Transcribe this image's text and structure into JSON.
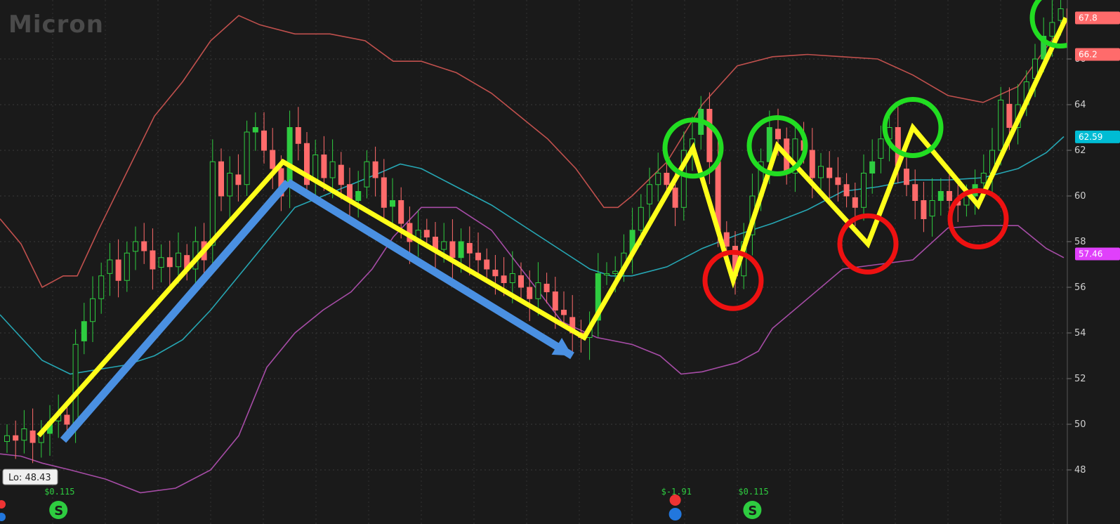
{
  "brand": {
    "logo_text": "Micron"
  },
  "lo_label": "Lo: 48.43",
  "price_tags": [
    {
      "value": "67.8",
      "price": 67.8,
      "bg": "#ff6b6b",
      "fg": "#ffffff"
    },
    {
      "value": "66.2",
      "price": 66.2,
      "bg": "#ff6b6b",
      "fg": "#ffffff"
    },
    {
      "value": "62.59",
      "price": 62.59,
      "bg": "#00bcd4",
      "fg": "#ffffff"
    },
    {
      "value": "57.46",
      "price": 57.46,
      "bg": "#e040fb",
      "fg": "#ffffff"
    }
  ],
  "events": [
    {
      "label": "$0.115",
      "type": "dividend",
      "xi": 6
    },
    {
      "label": "$-1.91",
      "type": "earnings",
      "xi": 78
    },
    {
      "label": "$0.115",
      "type": "dividend",
      "xi": 87
    }
  ],
  "chart_data": {
    "type": "candlestick",
    "title": "",
    "y_ticks": [
      48,
      50,
      52,
      54,
      56,
      58,
      60,
      62,
      64,
      66
    ],
    "ylim": [
      46,
      68.5
    ],
    "colors": {
      "up": "#2ecc40",
      "down": "#ff6b6b",
      "upper_band": "#c0504d",
      "middle_band": "#26a6b3",
      "lower_band": "#a64ca6",
      "zigzag": "#ffff1a",
      "arrow": "#4a90e2",
      "peak_circle": "#22dd22",
      "trough_circle": "#ee1111"
    },
    "candles_count": 126,
    "closes": [
      49.5,
      49.3,
      49.8,
      49.2,
      49.6,
      50.1,
      50.4,
      50.0,
      53.5,
      54.5,
      55.5,
      56.5,
      57.2,
      56.3,
      57.5,
      58.0,
      57.6,
      56.8,
      57.3,
      56.9,
      57.5,
      56.8,
      58.0,
      57.2,
      61.5,
      60.0,
      61.0,
      60.5,
      62.8,
      63.0,
      62.0,
      61.2,
      60.0,
      63.0,
      62.3,
      60.5,
      61.8,
      60.8,
      61.5,
      60.5,
      59.8,
      60.2,
      61.5,
      60.8,
      59.5,
      59.8,
      58.8,
      58.0,
      58.5,
      58.2,
      57.6,
      58.0,
      57.3,
      58.0,
      57.5,
      57.2,
      56.8,
      56.5,
      56.2,
      56.6,
      56.0,
      55.5,
      56.2,
      55.8,
      55.0,
      54.8,
      54.0,
      53.8,
      54.2,
      56.6,
      56.6,
      56.7,
      57.5,
      58.5,
      59.5,
      60.5,
      61.0,
      60.5,
      59.5,
      62.0,
      62.5,
      63.8,
      61.5,
      58.5,
      57.8,
      56.5,
      58.0,
      60.0,
      61.5,
      63.0,
      62.5,
      61.0,
      62.5,
      62.0,
      60.8,
      61.3,
      60.8,
      60.5,
      60.0,
      59.5,
      61.0,
      61.5,
      62.5,
      63.0,
      61.3,
      60.5,
      59.8,
      59.0,
      59.8,
      60.2,
      59.8,
      59.6,
      60.0,
      60.5,
      61.0,
      62.0,
      64.2,
      63.0,
      64.0,
      65.0,
      66.0,
      67.0,
      67.6,
      68.2,
      66.5,
      65.0
    ],
    "bollinger_upper": [
      [
        0,
        59.0
      ],
      [
        30,
        57.9
      ],
      [
        60,
        56.0
      ],
      [
        90,
        56.5
      ],
      [
        110,
        56.5
      ],
      [
        140,
        58.5
      ],
      [
        180,
        61.0
      ],
      [
        220,
        63.5
      ],
      [
        260,
        65.0
      ],
      [
        300,
        66.8
      ],
      [
        340,
        67.9
      ],
      [
        370,
        67.5
      ],
      [
        420,
        67.1
      ],
      [
        470,
        67.1
      ],
      [
        520,
        66.8
      ],
      [
        560,
        65.9
      ],
      [
        600,
        65.9
      ],
      [
        650,
        65.4
      ],
      [
        700,
        64.5
      ],
      [
        740,
        63.5
      ],
      [
        780,
        62.5
      ],
      [
        820,
        61.2
      ],
      [
        860,
        59.5
      ],
      [
        880,
        59.5
      ],
      [
        900,
        60.0
      ],
      [
        950,
        61.5
      ],
      [
        1000,
        64.0
      ],
      [
        1050,
        65.7
      ],
      [
        1100,
        66.1
      ],
      [
        1150,
        66.2
      ],
      [
        1200,
        66.1
      ],
      [
        1250,
        66.0
      ],
      [
        1300,
        65.3
      ],
      [
        1350,
        64.4
      ],
      [
        1400,
        64.1
      ],
      [
        1450,
        64.8
      ],
      [
        1490,
        66.5
      ],
      [
        1515,
        67.5
      ]
    ],
    "bollinger_middle": [
      [
        0,
        54.8
      ],
      [
        30,
        53.8
      ],
      [
        60,
        52.8
      ],
      [
        100,
        52.2
      ],
      [
        140,
        52.4
      ],
      [
        180,
        52.6
      ],
      [
        220,
        53.0
      ],
      [
        260,
        53.7
      ],
      [
        300,
        55.0
      ],
      [
        340,
        56.5
      ],
      [
        380,
        58.0
      ],
      [
        420,
        59.5
      ],
      [
        460,
        60.0
      ],
      [
        500,
        60.5
      ],
      [
        540,
        61.0
      ],
      [
        570,
        61.4
      ],
      [
        600,
        61.2
      ],
      [
        650,
        60.4
      ],
      [
        700,
        59.6
      ],
      [
        750,
        58.6
      ],
      [
        800,
        57.6
      ],
      [
        840,
        56.8
      ],
      [
        870,
        56.5
      ],
      [
        900,
        56.5
      ],
      [
        950,
        56.9
      ],
      [
        1000,
        57.7
      ],
      [
        1050,
        58.3
      ],
      [
        1100,
        58.8
      ],
      [
        1150,
        59.4
      ],
      [
        1200,
        60.2
      ],
      [
        1250,
        60.4
      ],
      [
        1300,
        60.7
      ],
      [
        1350,
        60.7
      ],
      [
        1400,
        60.8
      ],
      [
        1450,
        61.2
      ],
      [
        1490,
        61.9
      ],
      [
        1515,
        62.6
      ]
    ],
    "bollinger_lower": [
      [
        0,
        48.7
      ],
      [
        30,
        48.6
      ],
      [
        60,
        48.3
      ],
      [
        100,
        48.0
      ],
      [
        150,
        47.6
      ],
      [
        200,
        47.0
      ],
      [
        250,
        47.2
      ],
      [
        300,
        48.0
      ],
      [
        340,
        49.5
      ],
      [
        380,
        52.5
      ],
      [
        420,
        54.0
      ],
      [
        460,
        55.0
      ],
      [
        500,
        55.8
      ],
      [
        530,
        56.8
      ],
      [
        560,
        58.2
      ],
      [
        600,
        59.5
      ],
      [
        650,
        59.5
      ],
      [
        700,
        58.5
      ],
      [
        750,
        56.5
      ],
      [
        800,
        54.5
      ],
      [
        850,
        53.8
      ],
      [
        900,
        53.5
      ],
      [
        940,
        53.0
      ],
      [
        970,
        52.2
      ],
      [
        1000,
        52.3
      ],
      [
        1050,
        52.7
      ],
      [
        1080,
        53.2
      ],
      [
        1100,
        54.2
      ],
      [
        1150,
        55.5
      ],
      [
        1200,
        56.8
      ],
      [
        1250,
        57.0
      ],
      [
        1300,
        57.2
      ],
      [
        1350,
        58.6
      ],
      [
        1400,
        58.7
      ],
      [
        1450,
        58.7
      ],
      [
        1490,
        57.7
      ],
      [
        1515,
        57.3
      ]
    ],
    "zigzag": [
      [
        55,
        49.5
      ],
      [
        403,
        61.5
      ],
      [
        832,
        53.8
      ],
      [
        987,
        62.1
      ],
      [
        1044,
        56.3
      ],
      [
        1107,
        62.2
      ],
      [
        1236,
        57.9
      ],
      [
        1300,
        63.0
      ],
      [
        1393,
        59.6
      ],
      [
        1518,
        67.8
      ]
    ],
    "arrows": [
      [
        [
          90,
          49.3
        ],
        [
          410,
          60.6
        ]
      ],
      [
        [
          410,
          60.6
        ],
        [
          815,
          53.0
        ]
      ]
    ],
    "peak_circles": [
      [
        987,
        62.1
      ],
      [
        1107,
        62.2
      ],
      [
        1300,
        63.0
      ],
      [
        1510,
        67.8
      ]
    ],
    "trough_circles": [
      [
        1044,
        56.3
      ],
      [
        1236,
        57.9
      ],
      [
        1393,
        59.0
      ]
    ]
  }
}
